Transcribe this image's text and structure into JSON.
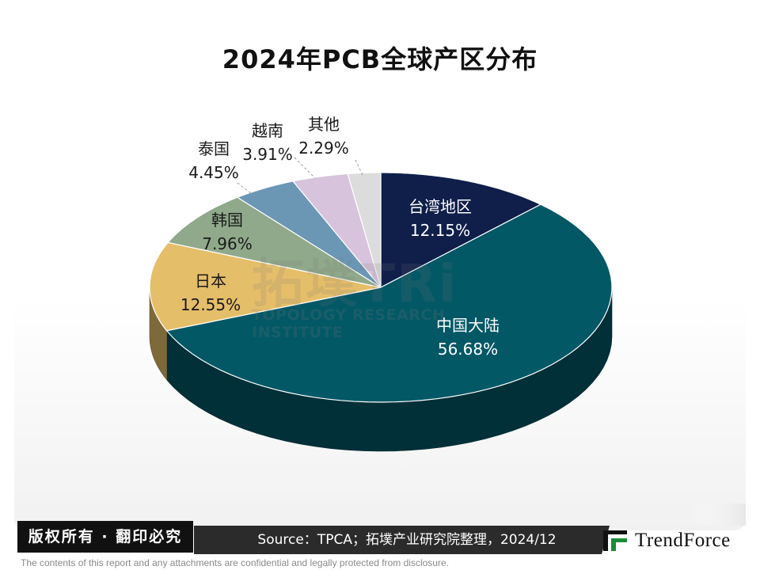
{
  "chart_data": {
    "type": "pie",
    "title": "2024年PCB全球产区分布",
    "slices": [
      {
        "label": "台湾地区",
        "value": 12.15,
        "value_label": "12.15%",
        "color": "#0f1f4a"
      },
      {
        "label": "中国大陆",
        "value": 56.68,
        "value_label": "56.68%",
        "color": "#035866"
      },
      {
        "label": "日本",
        "value": 12.55,
        "value_label": "12.55%",
        "color": "#e5be6a"
      },
      {
        "label": "韩国",
        "value": 7.96,
        "value_label": "7.96%",
        "color": "#8fa98a"
      },
      {
        "label": "泰国",
        "value": 4.45,
        "value_label": "4.45%",
        "color": "#6b97b5"
      },
      {
        "label": "越南",
        "value": 3.91,
        "value_label": "3.91%",
        "color": "#d7c4dc"
      },
      {
        "label": "其他",
        "value": 2.29,
        "value_label": "2.29%",
        "color": "#dcdcdc"
      }
    ]
  },
  "watermark": {
    "main": "拓墣TRi",
    "sub": "TOPOLOGY RESEARCH INSTITUTE"
  },
  "footer": {
    "copyright": "版权所有 · 翻印必究",
    "source": "Source：TPCA；拓墣产业研究院整理，2024/12",
    "logo": "TrendForce",
    "disclaimer": "The contents of this report and any attachments are confidential and legally protected from disclosure."
  }
}
